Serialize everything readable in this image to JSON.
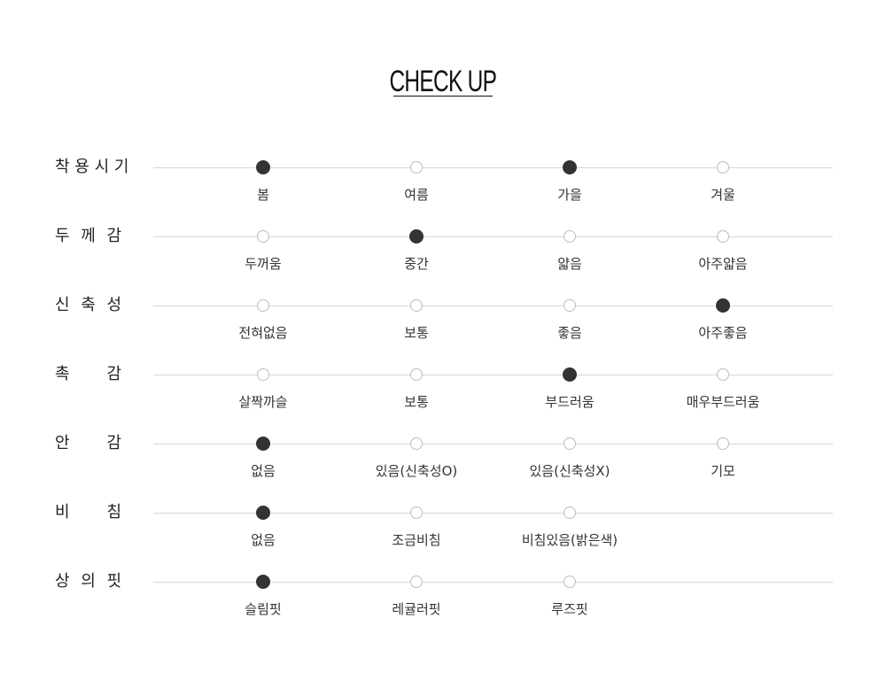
{
  "title": "CHECK UP",
  "colors": {
    "selected": "#333333",
    "unselected_border": "#bcbcbc",
    "line": "#d6d6d6"
  },
  "rows": [
    {
      "label": "착용시기",
      "options": [
        "봄",
        "여름",
        "가을",
        "겨울"
      ],
      "selected": [
        0,
        2
      ]
    },
    {
      "label": "두께감",
      "options": [
        "두꺼움",
        "중간",
        "얇음",
        "아주얇음"
      ],
      "selected": [
        1
      ]
    },
    {
      "label": "신축성",
      "options": [
        "전혀없음",
        "보통",
        "좋음",
        "아주좋음"
      ],
      "selected": [
        3
      ]
    },
    {
      "label": "촉감",
      "options": [
        "살짝까슬",
        "보통",
        "부드러움",
        "매우부드러움"
      ],
      "selected": [
        2
      ]
    },
    {
      "label": "안감",
      "options": [
        "없음",
        "있음(신축성O)",
        "있음(신축성X)",
        "기모"
      ],
      "selected": [
        0
      ]
    },
    {
      "label": "비침",
      "options": [
        "없음",
        "조금비침",
        "비침있음(밝은색)"
      ],
      "selected": [
        0
      ]
    },
    {
      "label": "상의핏",
      "options": [
        "슬림핏",
        "레귤러핏",
        "루즈핏"
      ],
      "selected": [
        0
      ]
    }
  ]
}
